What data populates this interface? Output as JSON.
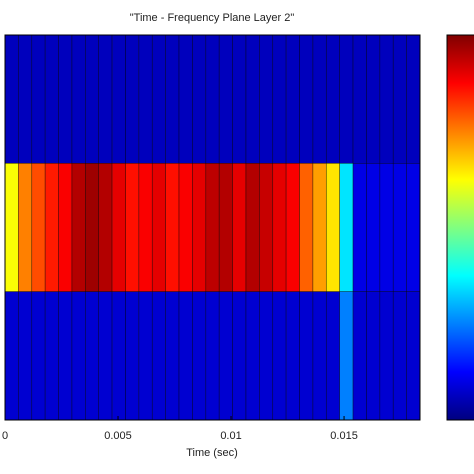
{
  "chart_data": {
    "type": "heatmap",
    "title": "\"Time - Frequency Plane Layer 2\"",
    "x_label": "Time (sec)",
    "xlim": [
      0,
      0.01836
    ],
    "xticks": [
      0,
      0.005,
      0.01,
      0.015
    ],
    "zlim": [
      0,
      1
    ],
    "colormap": "jet",
    "z": [
      [
        0.06,
        0.06,
        0.06,
        0.06,
        0.06,
        0.06,
        0.06,
        0.06,
        0.06,
        0.06,
        0.06,
        0.06,
        0.06,
        0.06,
        0.06,
        0.06,
        0.06,
        0.06,
        0.06,
        0.06,
        0.06,
        0.06,
        0.06,
        0.06,
        0.06,
        0.06,
        0.06,
        0.06,
        0.06,
        0.06,
        0.06
      ],
      [
        0.62,
        0.75,
        0.8,
        0.85,
        0.88,
        0.95,
        0.97,
        0.95,
        0.9,
        0.86,
        0.88,
        0.9,
        0.86,
        0.88,
        0.9,
        0.94,
        0.95,
        0.9,
        0.95,
        0.93,
        0.9,
        0.88,
        0.78,
        0.72,
        0.65,
        0.35,
        0.1,
        0.1,
        0.1,
        0.1,
        0.1
      ],
      [
        0.08,
        0.08,
        0.08,
        0.08,
        0.08,
        0.08,
        0.08,
        0.08,
        0.08,
        0.08,
        0.08,
        0.08,
        0.08,
        0.08,
        0.08,
        0.08,
        0.08,
        0.08,
        0.08,
        0.08,
        0.08,
        0.08,
        0.08,
        0.08,
        0.08,
        0.25,
        0.08,
        0.08,
        0.08,
        0.08,
        0.08
      ]
    ]
  }
}
